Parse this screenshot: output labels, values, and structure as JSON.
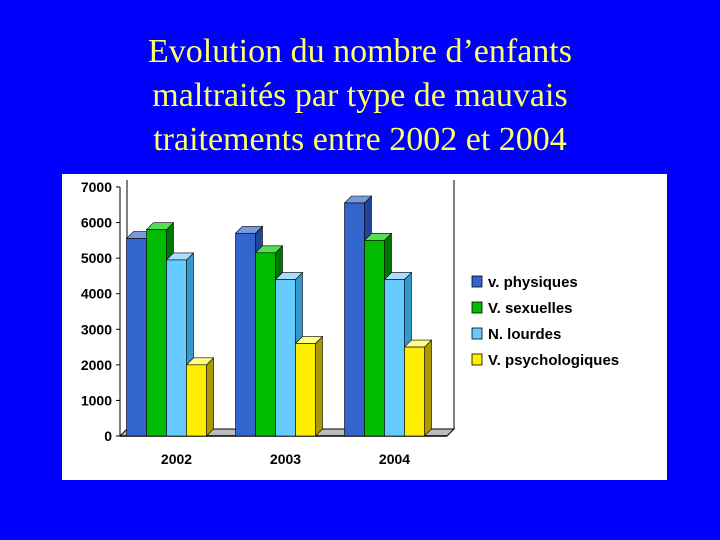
{
  "slide": {
    "title_lines": [
      "Evolution du nombre d’enfants",
      "maltraités par type de mauvais",
      "traitements entre 2002 et 2004"
    ]
  },
  "colors": {
    "background": "#0000ff",
    "title": "#ffff66"
  },
  "chart_data": {
    "type": "bar",
    "categories": [
      "2002",
      "2003",
      "2004"
    ],
    "series": [
      {
        "name": "v. physiques",
        "values": [
          5550,
          5700,
          6550
        ],
        "color": "#3366cc",
        "side": "#22449a",
        "top": "#7799dd"
      },
      {
        "name": "V. sexuelles",
        "values": [
          5800,
          5150,
          5500
        ],
        "color": "#00bb00",
        "side": "#007700",
        "top": "#55dd55"
      },
      {
        "name": "N. lourdes",
        "values": [
          4950,
          4400,
          4400
        ],
        "color": "#66ccff",
        "side": "#3399cc",
        "top": "#aaddff"
      },
      {
        "name": "V. psychologiques",
        "values": [
          2000,
          2600,
          2500
        ],
        "color": "#ffee00",
        "side": "#aa9900",
        "top": "#ffff88"
      }
    ],
    "yticks": [
      0,
      1000,
      2000,
      3000,
      4000,
      5000,
      6000,
      7000
    ],
    "ylim": [
      0,
      7000
    ],
    "grid": false,
    "legend_position": "right"
  }
}
